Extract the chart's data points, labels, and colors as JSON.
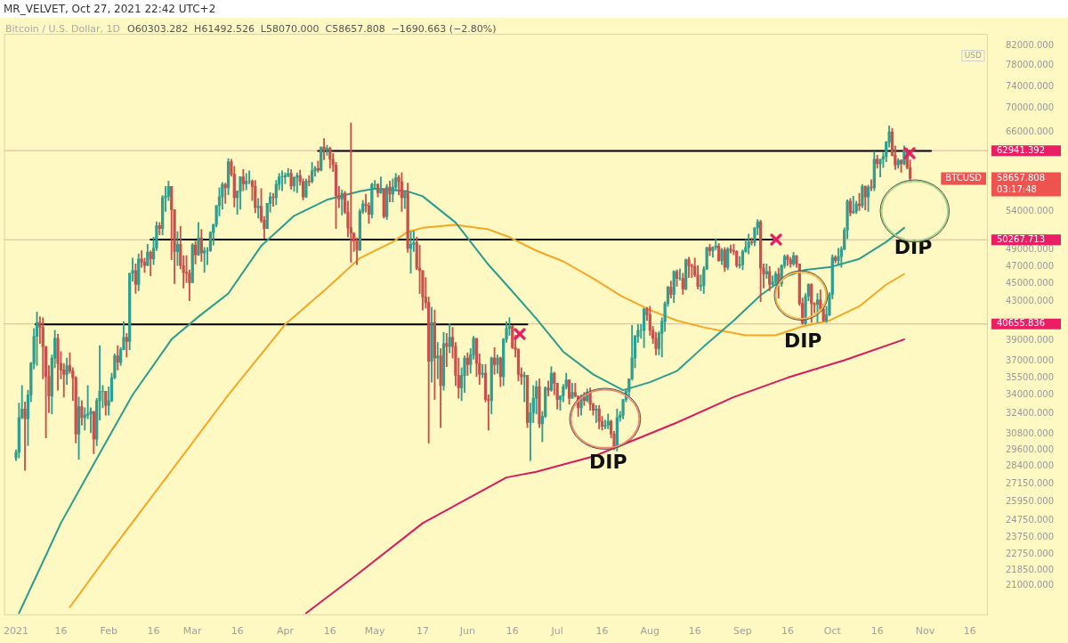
{
  "chart_data": {
    "type": "candlestick",
    "title": "MR_VELVET, Oct 27, 2021 22:42 UTC+2",
    "subtitle": "Bitcoin / U.S. Dollar, 1D",
    "ylabel": "USD",
    "log": true,
    "x": [
      "2021-01-01",
      "2021-01-02",
      "2021-01-03",
      "2021-01-04",
      "2021-01-05",
      "2021-01-06",
      "2021-01-07",
      "2021-01-08",
      "2021-01-09",
      "2021-01-10",
      "2021-01-11",
      "2021-01-12",
      "2021-01-13",
      "2021-01-14",
      "2021-01-15",
      "2021-01-16",
      "2021-01-17",
      "2021-01-18",
      "2021-01-19",
      "2021-01-20",
      "2021-01-21",
      "2021-01-22",
      "2021-01-23",
      "2021-01-24",
      "2021-01-25",
      "2021-01-26",
      "2021-01-27",
      "2021-01-28",
      "2021-01-29",
      "2021-01-30",
      "2021-01-31",
      "2021-02-01",
      "2021-02-02",
      "2021-02-03",
      "2021-02-04",
      "2021-02-05",
      "2021-02-06",
      "2021-02-07",
      "2021-02-08",
      "2021-02-09",
      "2021-02-10",
      "2021-02-11",
      "2021-02-12",
      "2021-02-13",
      "2021-02-14",
      "2021-02-15",
      "2021-02-16",
      "2021-02-17",
      "2021-02-18",
      "2021-02-19",
      "2021-02-20",
      "2021-02-21",
      "2021-02-22",
      "2021-02-23",
      "2021-02-24",
      "2021-02-25",
      "2021-02-26",
      "2021-02-27",
      "2021-02-28",
      "2021-03-01",
      "2021-03-02",
      "2021-03-03",
      "2021-03-04",
      "2021-03-05",
      "2021-03-06",
      "2021-03-07",
      "2021-03-08",
      "2021-03-09",
      "2021-03-10",
      "2021-03-11",
      "2021-03-12",
      "2021-03-13",
      "2021-03-14",
      "2021-03-15",
      "2021-03-16",
      "2021-03-17",
      "2021-03-18",
      "2021-03-19",
      "2021-03-20",
      "2021-03-21",
      "2021-03-22",
      "2021-03-23",
      "2021-03-24",
      "2021-03-25",
      "2021-03-26",
      "2021-03-27",
      "2021-03-28",
      "2021-03-29",
      "2021-03-30",
      "2021-03-31",
      "2021-04-01",
      "2021-04-02",
      "2021-04-03",
      "2021-04-04",
      "2021-04-05",
      "2021-04-06",
      "2021-04-07",
      "2021-04-08",
      "2021-04-09",
      "2021-04-10",
      "2021-04-11",
      "2021-04-12",
      "2021-04-13",
      "2021-04-14",
      "2021-04-15",
      "2021-04-16",
      "2021-04-17",
      "2021-04-18",
      "2021-04-19",
      "2021-04-20",
      "2021-04-21",
      "2021-04-22",
      "2021-04-23",
      "2021-04-24",
      "2021-04-25",
      "2021-04-26",
      "2021-04-27",
      "2021-04-28",
      "2021-04-29",
      "2021-04-30",
      "2021-05-01",
      "2021-05-02",
      "2021-05-03",
      "2021-05-04",
      "2021-05-05",
      "2021-05-06",
      "2021-05-07",
      "2021-05-08",
      "2021-05-09",
      "2021-05-10",
      "2021-05-11",
      "2021-05-12",
      "2021-05-13",
      "2021-05-14",
      "2021-05-15",
      "2021-05-16",
      "2021-05-17",
      "2021-05-18",
      "2021-05-19",
      "2021-05-20",
      "2021-05-21",
      "2021-05-22",
      "2021-05-23",
      "2021-05-24",
      "2021-05-25",
      "2021-05-26",
      "2021-05-27",
      "2021-05-28",
      "2021-05-29",
      "2021-05-30",
      "2021-05-31",
      "2021-06-01",
      "2021-06-02",
      "2021-06-03",
      "2021-06-04",
      "2021-06-05",
      "2021-06-06",
      "2021-06-07",
      "2021-06-08",
      "2021-06-09",
      "2021-06-10",
      "2021-06-11",
      "2021-06-12",
      "2021-06-13",
      "2021-06-14",
      "2021-06-15",
      "2021-06-16",
      "2021-06-17",
      "2021-06-18",
      "2021-06-19",
      "2021-06-20",
      "2021-06-21",
      "2021-06-22",
      "2021-06-23",
      "2021-06-24",
      "2021-06-25",
      "2021-06-26",
      "2021-06-27",
      "2021-06-28",
      "2021-06-29",
      "2021-06-30",
      "2021-07-01",
      "2021-07-02",
      "2021-07-03",
      "2021-07-04",
      "2021-07-05",
      "2021-07-06",
      "2021-07-07",
      "2021-07-08",
      "2021-07-09",
      "2021-07-10",
      "2021-07-11",
      "2021-07-12",
      "2021-07-13",
      "2021-07-14",
      "2021-07-15",
      "2021-07-16",
      "2021-07-17",
      "2021-07-18",
      "2021-07-19",
      "2021-07-20",
      "2021-07-21",
      "2021-07-22",
      "2021-07-23",
      "2021-07-24",
      "2021-07-25",
      "2021-07-26",
      "2021-07-27",
      "2021-07-28",
      "2021-07-29",
      "2021-07-30",
      "2021-07-31",
      "2021-08-01",
      "2021-08-02",
      "2021-08-03",
      "2021-08-04",
      "2021-08-05",
      "2021-08-06",
      "2021-08-07",
      "2021-08-08",
      "2021-08-09",
      "2021-08-10",
      "2021-08-11",
      "2021-08-12",
      "2021-08-13",
      "2021-08-14",
      "2021-08-15",
      "2021-08-16",
      "2021-08-17",
      "2021-08-18",
      "2021-08-19",
      "2021-08-20",
      "2021-08-21",
      "2021-08-22",
      "2021-08-23",
      "2021-08-24",
      "2021-08-25",
      "2021-08-26",
      "2021-08-27",
      "2021-08-28",
      "2021-08-29",
      "2021-08-30",
      "2021-08-31",
      "2021-09-01",
      "2021-09-02",
      "2021-09-03",
      "2021-09-04",
      "2021-09-05",
      "2021-09-06",
      "2021-09-07",
      "2021-09-08",
      "2021-09-09",
      "2021-09-10",
      "2021-09-11",
      "2021-09-12",
      "2021-09-13",
      "2021-09-14",
      "2021-09-15",
      "2021-09-16",
      "2021-09-17",
      "2021-09-18",
      "2021-09-19",
      "2021-09-20",
      "2021-09-21",
      "2021-09-22",
      "2021-09-23",
      "2021-09-24",
      "2021-09-25",
      "2021-09-26",
      "2021-09-27",
      "2021-09-28",
      "2021-09-29",
      "2021-09-30",
      "2021-10-01",
      "2021-10-02",
      "2021-10-03",
      "2021-10-04",
      "2021-10-05",
      "2021-10-06",
      "2021-10-07",
      "2021-10-08",
      "2021-10-09",
      "2021-10-10",
      "2021-10-11",
      "2021-10-12",
      "2021-10-13",
      "2021-10-14",
      "2021-10-15",
      "2021-10-16",
      "2021-10-17",
      "2021-10-18",
      "2021-10-19",
      "2021-10-20",
      "2021-10-21",
      "2021-10-22",
      "2021-10-23",
      "2021-10-24",
      "2021-10-25",
      "2021-10-26",
      "2021-10-27"
    ],
    "ohlc": [
      [
        29000,
        29600,
        28800,
        29400
      ],
      [
        29400,
        33300,
        29000,
        32100
      ],
      [
        32100,
        34800,
        32000,
        32800
      ],
      [
        32800,
        33400,
        28100,
        32000
      ],
      [
        32000,
        34400,
        29900,
        34000
      ],
      [
        34000,
        36900,
        33400,
        36800
      ],
      [
        36800,
        40200,
        36300,
        39400
      ],
      [
        39400,
        41900,
        36600,
        40800
      ],
      [
        40800,
        41400,
        38700,
        40300
      ],
      [
        40300,
        41300,
        35400,
        38400
      ],
      [
        38400,
        38400,
        30500,
        35600
      ],
      [
        35600,
        36600,
        32500,
        33900
      ],
      [
        33900,
        37600,
        32400,
        37300
      ],
      [
        37300,
        40000,
        36400,
        39200
      ],
      [
        39200,
        39600,
        34400,
        36800
      ],
      [
        36800,
        37900,
        35400,
        36200
      ],
      [
        36200,
        36800,
        33800,
        35800
      ],
      [
        35800,
        37300,
        34900,
        36600
      ],
      [
        36600,
        37800,
        35900,
        36100
      ],
      [
        36100,
        36400,
        33500,
        35500
      ],
      [
        35500,
        35600,
        30100,
        30800
      ],
      [
        30800,
        33800,
        28900,
        33000
      ],
      [
        33000,
        33500,
        31500,
        32100
      ],
      [
        32100,
        32900,
        31100,
        32300
      ],
      [
        32300,
        34800,
        32000,
        32400
      ],
      [
        32400,
        32900,
        30900,
        32600
      ],
      [
        32600,
        32600,
        29300,
        30400
      ],
      [
        30400,
        33700,
        29900,
        33500
      ],
      [
        33500,
        38500,
        31900,
        34300
      ],
      [
        34300,
        34800,
        32900,
        34300
      ],
      [
        34300,
        34300,
        32300,
        33100
      ],
      [
        33100,
        34700,
        32300,
        33500
      ],
      [
        33500,
        35900,
        33400,
        35500
      ],
      [
        35500,
        37700,
        35400,
        37500
      ],
      [
        37500,
        38500,
        36200,
        36900
      ],
      [
        36900,
        38300,
        36600,
        38100
      ],
      [
        38100,
        40900,
        38100,
        39300
      ],
      [
        39300,
        39700,
        37400,
        38900
      ],
      [
        38900,
        46200,
        38100,
        46200
      ],
      [
        46200,
        48000,
        45300,
        46500
      ],
      [
        46500,
        47300,
        43900,
        44900
      ],
      [
        44900,
        48500,
        44200,
        47900
      ],
      [
        47900,
        48900,
        46900,
        47500
      ],
      [
        47500,
        48000,
        46300,
        47100
      ],
      [
        47100,
        49700,
        47100,
        48700
      ],
      [
        48700,
        48900,
        45900,
        47900
      ],
      [
        47900,
        50600,
        47200,
        49200
      ],
      [
        49200,
        52600,
        48900,
        52100
      ],
      [
        52100,
        52500,
        50900,
        51700
      ],
      [
        51700,
        56200,
        50900,
        55900
      ],
      [
        55900,
        57500,
        54000,
        56100
      ],
      [
        56100,
        58300,
        55500,
        57500
      ],
      [
        57500,
        57500,
        47800,
        54200
      ],
      [
        54200,
        54200,
        45000,
        48800
      ],
      [
        48800,
        51300,
        47100,
        49700
      ],
      [
        49700,
        52000,
        46700,
        47100
      ],
      [
        47100,
        48300,
        44500,
        46300
      ],
      [
        46300,
        48300,
        45100,
        46200
      ],
      [
        46200,
        46600,
        43100,
        45100
      ],
      [
        45100,
        49800,
        45100,
        49600
      ],
      [
        49600,
        50100,
        47300,
        48400
      ],
      [
        48400,
        52500,
        48300,
        50500
      ],
      [
        50500,
        51600,
        47600,
        48600
      ],
      [
        48600,
        49300,
        46300,
        48900
      ],
      [
        48900,
        49300,
        47200,
        48900
      ],
      [
        48900,
        51300,
        48800,
        51200
      ],
      [
        51200,
        52300,
        49600,
        52200
      ],
      [
        52200,
        54800,
        51900,
        54800
      ],
      [
        54800,
        57300,
        53400,
        56000
      ],
      [
        56000,
        58100,
        54300,
        57800
      ],
      [
        57800,
        58000,
        55100,
        57300
      ],
      [
        57300,
        61700,
        56300,
        61200
      ],
      [
        61200,
        61600,
        59000,
        59300
      ],
      [
        59300,
        60500,
        54600,
        55900
      ],
      [
        55900,
        56900,
        53600,
        56800
      ],
      [
        56800,
        58900,
        54300,
        58900
      ],
      [
        58900,
        60000,
        56900,
        57900
      ],
      [
        57900,
        59400,
        57000,
        58300
      ],
      [
        58300,
        59800,
        57900,
        58300
      ],
      [
        58300,
        58500,
        55500,
        57500
      ],
      [
        57500,
        58400,
        53800,
        54500
      ],
      [
        54500,
        55800,
        53100,
        54700
      ],
      [
        54700,
        57200,
        52500,
        52800
      ],
      [
        52800,
        53300,
        50400,
        51700
      ],
      [
        51700,
        55100,
        51700,
        55100
      ],
      [
        55100,
        56600,
        53900,
        56000
      ],
      [
        56000,
        56500,
        54700,
        55900
      ],
      [
        55900,
        58400,
        54900,
        57800
      ],
      [
        57800,
        59400,
        57000,
        58900
      ],
      [
        58900,
        59800,
        56900,
        58900
      ],
      [
        58900,
        59500,
        57900,
        59100
      ],
      [
        59100,
        60200,
        58900,
        59400
      ],
      [
        59400,
        60000,
        57100,
        57600
      ],
      [
        57600,
        58900,
        56800,
        58800
      ],
      [
        58800,
        59500,
        56600,
        59100
      ],
      [
        59100,
        59900,
        57700,
        58200
      ],
      [
        58200,
        58600,
        55600,
        56000
      ],
      [
        56000,
        58600,
        55900,
        58300
      ],
      [
        58300,
        59100,
        57600,
        58200
      ],
      [
        58200,
        61100,
        58000,
        59800
      ],
      [
        59800,
        60500,
        59000,
        60200
      ],
      [
        60200,
        61300,
        59600,
        59900
      ],
      [
        59900,
        63500,
        59800,
        63500
      ],
      [
        63500,
        64900,
        61500,
        63100
      ],
      [
        63100,
        63800,
        62200,
        63300
      ],
      [
        63300,
        63500,
        60200,
        61600
      ],
      [
        61600,
        62500,
        59700,
        60700
      ],
      [
        60700,
        61100,
        51700,
        56200
      ],
      [
        56200,
        57500,
        54500,
        55700
      ],
      [
        55700,
        57000,
        53500,
        56500
      ],
      [
        56500,
        56800,
        53700,
        53900
      ],
      [
        53900,
        55400,
        50600,
        51800
      ],
      [
        51800,
        67500,
        47500,
        51100
      ],
      [
        51100,
        51200,
        48800,
        50100
      ],
      [
        50100,
        50500,
        47200,
        49000
      ],
      [
        49000,
        54300,
        48900,
        54000
      ],
      [
        54000,
        55500,
        53700,
        55000
      ],
      [
        55000,
        56400,
        53900,
        54800
      ],
      [
        54800,
        55200,
        52400,
        53600
      ],
      [
        53600,
        58000,
        53100,
        57800
      ],
      [
        57800,
        58400,
        57100,
        57800
      ],
      [
        57800,
        57900,
        56000,
        56600
      ],
      [
        56600,
        58900,
        56500,
        57200
      ],
      [
        57200,
        57200,
        53100,
        53300
      ],
      [
        53300,
        57800,
        52900,
        57400
      ],
      [
        57400,
        58300,
        55300,
        56400
      ],
      [
        56400,
        58600,
        55300,
        57400
      ],
      [
        57400,
        59400,
        56900,
        58800
      ],
      [
        58800,
        59100,
        56300,
        58200
      ],
      [
        58200,
        59500,
        54000,
        55900
      ],
      [
        55900,
        56800,
        54400,
        56700
      ],
      [
        56700,
        58000,
        48700,
        49200
      ],
      [
        49200,
        51300,
        46200,
        49700
      ],
      [
        49700,
        51400,
        48800,
        49900
      ],
      [
        49900,
        50600,
        46600,
        46800
      ],
      [
        46800,
        49600,
        43900,
        46500
      ],
      [
        46500,
        46500,
        42100,
        43500
      ],
      [
        43500,
        45700,
        42300,
        42900
      ],
      [
        42900,
        43500,
        30100,
        37000
      ],
      [
        37000,
        42400,
        35100,
        40800
      ],
      [
        40800,
        42100,
        33600,
        37300
      ],
      [
        37300,
        38800,
        35400,
        37500
      ],
      [
        37500,
        38200,
        31300,
        34800
      ],
      [
        34800,
        39800,
        34400,
        38700
      ],
      [
        38700,
        39700,
        36500,
        38400
      ],
      [
        38400,
        40700,
        37800,
        39300
      ],
      [
        39300,
        40300,
        37300,
        38400
      ],
      [
        38400,
        38800,
        34800,
        35700
      ],
      [
        35700,
        37300,
        33700,
        34600
      ],
      [
        34600,
        36400,
        33500,
        35700
      ],
      [
        35700,
        37500,
        34200,
        37300
      ],
      [
        37300,
        37800,
        35700,
        36700
      ],
      [
        36700,
        38200,
        35900,
        37600
      ],
      [
        37600,
        39400,
        37200,
        39200
      ],
      [
        39200,
        39200,
        35600,
        36800
      ],
      [
        36800,
        37700,
        34900,
        35800
      ],
      [
        35800,
        36700,
        35500,
        35900
      ],
      [
        35900,
        36700,
        33400,
        33600
      ],
      [
        33600,
        34000,
        31100,
        33500
      ],
      [
        33500,
        37400,
        32400,
        37300
      ],
      [
        37300,
        38300,
        35800,
        36700
      ],
      [
        36700,
        37600,
        35900,
        37300
      ],
      [
        37300,
        37400,
        34700,
        35600
      ],
      [
        35600,
        39200,
        34800,
        39100
      ],
      [
        39100,
        40900,
        38800,
        40200
      ],
      [
        40200,
        41300,
        39500,
        40400
      ],
      [
        40400,
        40500,
        38200,
        38300
      ],
      [
        38300,
        39500,
        37400,
        38100
      ],
      [
        38100,
        38200,
        35200,
        35800
      ],
      [
        35800,
        36400,
        34900,
        35600
      ],
      [
        35600,
        36000,
        33400,
        35700
      ],
      [
        35700,
        35700,
        31300,
        31700
      ],
      [
        31700,
        33300,
        28800,
        32500
      ],
      [
        32500,
        34800,
        31700,
        33700
      ],
      [
        33700,
        35200,
        32400,
        34700
      ],
      [
        34700,
        35400,
        31300,
        31600
      ],
      [
        31600,
        32600,
        30200,
        32200
      ],
      [
        32200,
        34700,
        32100,
        34600
      ],
      [
        34600,
        35200,
        33900,
        34400
      ],
      [
        34400,
        36500,
        34300,
        35900
      ],
      [
        35900,
        36000,
        34000,
        35000
      ],
      [
        35000,
        35000,
        32800,
        33600
      ],
      [
        33600,
        33900,
        32700,
        33900
      ],
      [
        33900,
        34900,
        33400,
        34700
      ],
      [
        34700,
        35900,
        34500,
        35300
      ],
      [
        35300,
        35300,
        33200,
        33700
      ],
      [
        33700,
        35000,
        33700,
        34200
      ],
      [
        34200,
        35000,
        33800,
        33900
      ],
      [
        33900,
        33900,
        32200,
        32900
      ],
      [
        32900,
        34000,
        32300,
        33800
      ],
      [
        33800,
        34200,
        33100,
        33500
      ],
      [
        33500,
        34500,
        33400,
        34200
      ],
      [
        34200,
        34600,
        32700,
        33200
      ],
      [
        33200,
        33300,
        32300,
        32700
      ],
      [
        32700,
        33100,
        31700,
        32800
      ],
      [
        32800,
        33100,
        31200,
        31800
      ],
      [
        31800,
        32200,
        31100,
        31400
      ],
      [
        31400,
        31900,
        31200,
        31500
      ],
      [
        31500,
        32400,
        31200,
        31800
      ],
      [
        31800,
        31900,
        30500,
        30800
      ],
      [
        30800,
        31000,
        29600,
        29800
      ],
      [
        29800,
        32800,
        29500,
        32100
      ],
      [
        32100,
        32600,
        31800,
        32300
      ],
      [
        32300,
        33600,
        32000,
        33600
      ],
      [
        33600,
        34400,
        33400,
        34300
      ],
      [
        34300,
        35400,
        33900,
        35400
      ],
      [
        35400,
        40500,
        35300,
        37300
      ],
      [
        37300,
        39500,
        36400,
        39400
      ],
      [
        39400,
        40600,
        38800,
        40000
      ],
      [
        40000,
        40600,
        39200,
        40000
      ],
      [
        40000,
        42300,
        38300,
        42200
      ],
      [
        42200,
        42400,
        41000,
        41600
      ],
      [
        41600,
        42500,
        39500,
        40000
      ],
      [
        40000,
        40400,
        38700,
        39200
      ],
      [
        39200,
        39800,
        37600,
        38200
      ],
      [
        38200,
        39900,
        37600,
        39700
      ],
      [
        39700,
        41300,
        37400,
        40900
      ],
      [
        40900,
        43000,
        39900,
        42800
      ],
      [
        42800,
        44700,
        42500,
        44600
      ],
      [
        44600,
        45300,
        43400,
        43800
      ],
      [
        43800,
        46500,
        42900,
        46400
      ],
      [
        46400,
        46600,
        44700,
        45600
      ],
      [
        45600,
        46700,
        45400,
        45600
      ],
      [
        45600,
        46200,
        43800,
        44400
      ],
      [
        44400,
        47900,
        44300,
        47800
      ],
      [
        47800,
        48100,
        45700,
        47100
      ],
      [
        47100,
        47300,
        45700,
        47000
      ],
      [
        47000,
        48000,
        45800,
        46000
      ],
      [
        46000,
        47100,
        44400,
        44700
      ],
      [
        44700,
        46000,
        44200,
        44800
      ],
      [
        44800,
        47000,
        43900,
        46700
      ],
      [
        46700,
        49300,
        46600,
        49300
      ],
      [
        49300,
        49700,
        48300,
        48900
      ],
      [
        48900,
        49400,
        48100,
        49300
      ],
      [
        49300,
        50400,
        49000,
        49500
      ],
      [
        49500,
        49800,
        47600,
        47700
      ],
      [
        47700,
        49200,
        47200,
        49000
      ],
      [
        49000,
        49300,
        46400,
        46900
      ],
      [
        46900,
        49300,
        46600,
        49100
      ],
      [
        49100,
        49600,
        48600,
        48900
      ],
      [
        48900,
        49700,
        48400,
        48800
      ],
      [
        48800,
        48900,
        46900,
        47100
      ],
      [
        47100,
        48200,
        46800,
        47200
      ],
      [
        47200,
        49000,
        46600,
        48800
      ],
      [
        48800,
        50300,
        48700,
        49300
      ],
      [
        49300,
        51000,
        48500,
        50000
      ],
      [
        50000,
        50500,
        49600,
        49900
      ],
      [
        49900,
        51800,
        49500,
        51800
      ],
      [
        51800,
        52900,
        50900,
        52600
      ],
      [
        52600,
        52800,
        43000,
        46800
      ],
      [
        46800,
        47300,
        44500,
        46100
      ],
      [
        46100,
        47300,
        45600,
        46400
      ],
      [
        46400,
        47000,
        44200,
        44900
      ],
      [
        44900,
        45900,
        44800,
        45200
      ],
      [
        45200,
        46400,
        44800,
        46100
      ],
      [
        46100,
        46800,
        43400,
        45000
      ],
      [
        45000,
        47200,
        44700,
        47100
      ],
      [
        47100,
        48400,
        46800,
        48200
      ],
      [
        48200,
        48400,
        47100,
        47800
      ],
      [
        47800,
        48100,
        46900,
        47300
      ],
      [
        47300,
        48700,
        47100,
        48300
      ],
      [
        48300,
        48300,
        46900,
        47300
      ],
      [
        47300,
        47300,
        42600,
        42800
      ],
      [
        42800,
        43400,
        40600,
        40700
      ],
      [
        40700,
        43900,
        40600,
        43600
      ],
      [
        43600,
        45000,
        43100,
        44900
      ],
      [
        44900,
        45000,
        40800,
        42800
      ],
      [
        42800,
        42900,
        41800,
        42700
      ],
      [
        42700,
        43900,
        40800,
        43200
      ],
      [
        43200,
        44300,
        42100,
        42200
      ],
      [
        42200,
        42700,
        40900,
        41000
      ],
      [
        41000,
        42500,
        40800,
        41600
      ],
      [
        41600,
        44000,
        41500,
        43800
      ],
      [
        43800,
        48400,
        43300,
        48100
      ],
      [
        48100,
        48300,
        47400,
        47700
      ],
      [
        47700,
        49200,
        47100,
        48200
      ],
      [
        48200,
        49400,
        46900,
        49100
      ],
      [
        49100,
        51800,
        49000,
        51500
      ],
      [
        51500,
        55600,
        50400,
        55400
      ],
      [
        55400,
        55800,
        53400,
        53800
      ],
      [
        53800,
        56100,
        53700,
        54000
      ],
      [
        54000,
        55400,
        53700,
        55000
      ],
      [
        55000,
        56500,
        54100,
        54800
      ],
      [
        54800,
        57800,
        54500,
        57500
      ],
      [
        57500,
        57600,
        54200,
        56000
      ],
      [
        56000,
        57700,
        54000,
        57400
      ],
      [
        57400,
        58500,
        56900,
        57300
      ],
      [
        57300,
        62800,
        56900,
        61600
      ],
      [
        61600,
        62200,
        60200,
        60900
      ],
      [
        60900,
        61600,
        58900,
        61600
      ],
      [
        61600,
        62600,
        60300,
        62000
      ],
      [
        62000,
        64400,
        61200,
        64300
      ],
      [
        64300,
        67000,
        63500,
        66000
      ],
      [
        66000,
        66600,
        62100,
        62200
      ],
      [
        62200,
        63700,
        60000,
        60700
      ],
      [
        60700,
        61700,
        60200,
        61400
      ],
      [
        61400,
        61500,
        59600,
        60900
      ],
      [
        60900,
        63700,
        60700,
        63000
      ],
      [
        63000,
        63300,
        60100,
        60300
      ],
      [
        60303.282,
        61492.526,
        58070.0,
        58657.808
      ]
    ],
    "series": [
      {
        "type": "line",
        "color": "#2a9d8f",
        "x": [
          "2021-01-02",
          "2021-01-08",
          "2021-01-16",
          "2021-01-25",
          "2021-02-09",
          "2021-02-22",
          "2021-03-03",
          "2021-03-13",
          "2021-03-24",
          "2021-04-04",
          "2021-04-15",
          "2021-04-26",
          "2021-05-01",
          "2021-05-12",
          "2021-05-17",
          "2021-05-28",
          "2021-06-08",
          "2021-06-15",
          "2021-06-24",
          "2021-07-03",
          "2021-07-13",
          "2021-07-23",
          "2021-08-01",
          "2021-08-10",
          "2021-08-19",
          "2021-08-29",
          "2021-09-07",
          "2021-09-16",
          "2021-09-22",
          "2021-09-30",
          "2021-10-10",
          "2021-10-19",
          "2021-10-25"
        ],
        "values": [
          19600,
          21600,
          24600,
          27800,
          34000,
          39100,
          41400,
          43900,
          49500,
          53400,
          55600,
          56800,
          57200,
          56800,
          56100,
          52500,
          47200,
          44500,
          41200,
          37900,
          35800,
          34400,
          35100,
          36100,
          38400,
          41000,
          43700,
          45900,
          46600,
          46900,
          47900,
          50000,
          51800
        ]
      },
      {
        "type": "line",
        "color": "#f5a623",
        "x": [
          "2021-01-19",
          "2021-02-02",
          "2021-02-21",
          "2021-03-13",
          "2021-04-01",
          "2021-04-15",
          "2021-04-26",
          "2021-05-07",
          "2021-05-12",
          "2021-05-17",
          "2021-05-28",
          "2021-06-08",
          "2021-06-15",
          "2021-06-24",
          "2021-07-03",
          "2021-07-13",
          "2021-07-22",
          "2021-08-01",
          "2021-08-10",
          "2021-08-19",
          "2021-09-02",
          "2021-09-12",
          "2021-09-21",
          "2021-09-30",
          "2021-10-10",
          "2021-10-19",
          "2021-10-25"
        ],
        "values": [
          19900,
          23000,
          27800,
          34000,
          40600,
          44500,
          48000,
          50000,
          51300,
          51800,
          52200,
          51600,
          50600,
          48900,
          47600,
          45600,
          43700,
          42100,
          41000,
          40300,
          39500,
          39500,
          40400,
          41000,
          42500,
          44900,
          46100
        ]
      },
      {
        "type": "line",
        "color": "#d81b60",
        "x": [
          "2021-04-08",
          "2021-04-25",
          "2021-05-17",
          "2021-06-14",
          "2021-06-24",
          "2021-07-13",
          "2021-07-22",
          "2021-08-10",
          "2021-08-29",
          "2021-09-16",
          "2021-10-05",
          "2021-10-25"
        ],
        "values": [
          19600,
          21600,
          24600,
          27600,
          28000,
          29100,
          29900,
          31700,
          33800,
          35500,
          37100,
          39100
        ]
      },
      {
        "type": "line",
        "color": "#000000",
        "x": [
          "2021-04-12",
          "2021-11-03"
        ],
        "values": [
          62900,
          62900
        ]
      },
      {
        "type": "line",
        "color": "#000000",
        "x": [
          "2021-02-15",
          "2021-09-11"
        ],
        "values": [
          50300,
          50300
        ]
      },
      {
        "type": "line",
        "color": "#000000",
        "x": [
          "2021-01-07T12:00",
          "2021-06-21"
        ],
        "values": [
          40600,
          40600
        ]
      }
    ],
    "xlim": [
      "2020-12-28",
      "2021-11-22"
    ],
    "ylim": [
      19500,
      84500
    ],
    "xticks": [
      {
        "value": "2021-01-01",
        "label": "2021"
      },
      {
        "value": "2021-01-16",
        "label": "16"
      },
      {
        "value": "2021-02-01",
        "label": "Feb"
      },
      {
        "value": "2021-02-16",
        "label": "16"
      },
      {
        "value": "2021-03-01",
        "label": "Mar"
      },
      {
        "value": "2021-03-16",
        "label": "16"
      },
      {
        "value": "2021-04-01",
        "label": "Apr"
      },
      {
        "value": "2021-04-16",
        "label": "16"
      },
      {
        "value": "2021-05-01",
        "label": "May"
      },
      {
        "value": "2021-05-17",
        "label": "17"
      },
      {
        "value": "2021-06-01",
        "label": "Jun"
      },
      {
        "value": "2021-06-16",
        "label": "16"
      },
      {
        "value": "2021-07-01",
        "label": "Jul"
      },
      {
        "value": "2021-07-16",
        "label": "16"
      },
      {
        "value": "2021-08-01",
        "label": "Aug"
      },
      {
        "value": "2021-08-16",
        "label": "16"
      },
      {
        "value": "2021-09-01",
        "label": "Sep"
      },
      {
        "value": "2021-09-16",
        "label": "16"
      },
      {
        "value": "2021-10-01",
        "label": "Oct"
      },
      {
        "value": "2021-10-16",
        "label": "16"
      },
      {
        "value": "2021-11-01",
        "label": "Nov"
      },
      {
        "value": "2021-11-16",
        "label": "16"
      }
    ],
    "yticks": [
      {
        "value": 21000,
        "label": "21000.000"
      },
      {
        "value": 21850,
        "label": "21850.000"
      },
      {
        "value": 22750,
        "label": "22750.000"
      },
      {
        "value": 23750,
        "label": "23750.000"
      },
      {
        "value": 24750,
        "label": "24750.000"
      },
      {
        "value": 25950,
        "label": "25950.000"
      },
      {
        "value": 27150,
        "label": "27150.000"
      },
      {
        "value": 28400,
        "label": "28400.000"
      },
      {
        "value": 29600,
        "label": "29600.000"
      },
      {
        "value": 30800,
        "label": "30800.000"
      },
      {
        "value": 32400,
        "label": "32400.000"
      },
      {
        "value": 34000,
        "label": "34000.000"
      },
      {
        "value": 35500,
        "label": "35500.000"
      },
      {
        "value": 37000,
        "label": "37000.000"
      },
      {
        "value": 39000,
        "label": "39000.000"
      },
      {
        "value": 43000,
        "label": "43000.000"
      },
      {
        "value": 45000,
        "label": "45000.000"
      },
      {
        "value": 47000,
        "label": "47000.000"
      },
      {
        "value": 49000,
        "label": "49000.000"
      },
      {
        "value": 54000,
        "label": "54000.000"
      },
      {
        "value": 66000,
        "label": "66000.000"
      },
      {
        "value": 70000,
        "label": "70000.000"
      },
      {
        "value": 74000,
        "label": "74000.000"
      },
      {
        "value": 78000,
        "label": "78000.000"
      },
      {
        "value": 82000,
        "label": "82000.000"
      }
    ],
    "ref_lines": [
      {
        "axis": "y",
        "value": 62941.392,
        "label": "62941.392",
        "color": "#f4a7a7"
      },
      {
        "axis": "y",
        "value": 50267.713,
        "label": "50267.713",
        "color": "#f4a7a7"
      },
      {
        "axis": "y",
        "value": 40655.836,
        "label": "40655.836",
        "color": "#f4a7a7"
      }
    ],
    "annotations": [
      "O60303.282  H61492.526  L58070.000  C58657.808  −1690.663 (−2.80%)",
      "DIP",
      "DIP",
      "DIP",
      "58657.808",
      "03:17:48",
      "BTCUSD"
    ]
  }
}
